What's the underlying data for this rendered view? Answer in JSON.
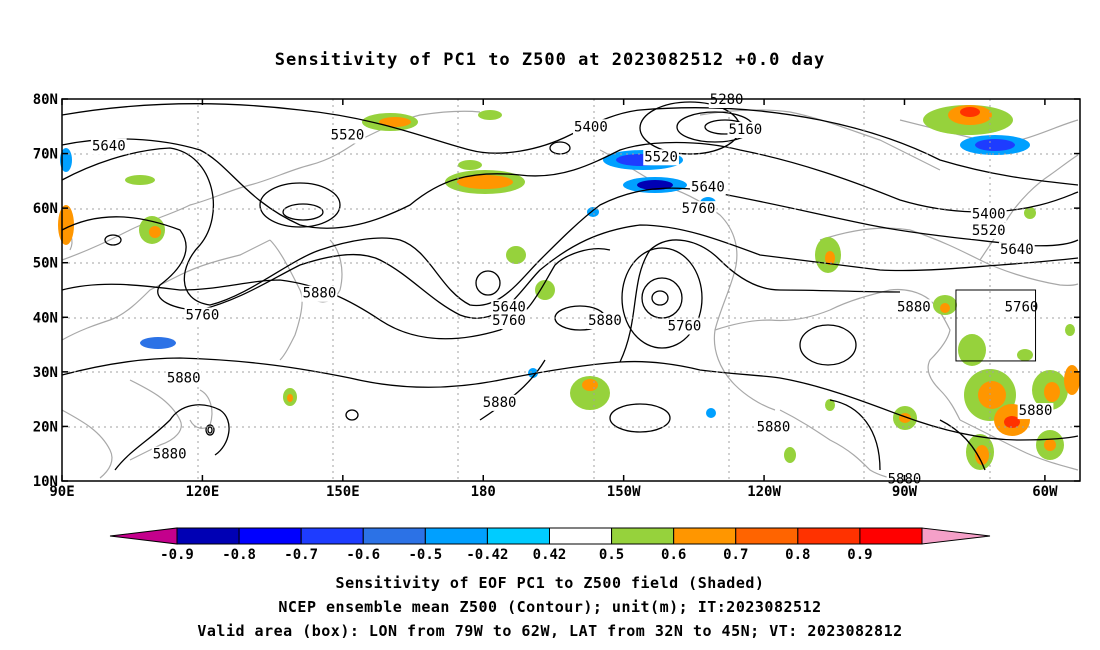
{
  "title": "Sensitivity of PC1 to Z500 at 2023082512 +0.0 day",
  "map": {
    "lat_labels": [
      "80N",
      "70N",
      "60N",
      "50N",
      "40N",
      "30N",
      "20N",
      "10N"
    ],
    "lon_labels": [
      "90E",
      "120E",
      "150E",
      "180",
      "150W",
      "120W",
      "90W",
      "60W"
    ],
    "contour_labels": [
      {
        "text": "5640",
        "lon": 100,
        "lat": 71.5
      },
      {
        "text": "5520",
        "lon": 151,
        "lat": 73.5
      },
      {
        "text": "5400",
        "lon": -157,
        "lat": 75
      },
      {
        "text": "5280",
        "lon": -128,
        "lat": 80
      },
      {
        "text": "5160",
        "lon": -124,
        "lat": 74.5
      },
      {
        "text": "5520",
        "lon": -142,
        "lat": 69.5
      },
      {
        "text": "5640",
        "lon": -132,
        "lat": 64
      },
      {
        "text": "5760",
        "lon": -134,
        "lat": 60
      },
      {
        "text": "5400",
        "lon": -72,
        "lat": 59
      },
      {
        "text": "5520",
        "lon": -72,
        "lat": 56
      },
      {
        "text": "5640",
        "lon": -66,
        "lat": 52.5
      },
      {
        "text": "5880",
        "lon": 145,
        "lat": 44.5
      },
      {
        "text": "5760",
        "lon": 120,
        "lat": 40.5
      },
      {
        "text": "5640",
        "lon": -174.5,
        "lat": 42
      },
      {
        "text": "5760",
        "lon": -174.5,
        "lat": 39.5
      },
      {
        "text": "5880",
        "lon": -154,
        "lat": 39.5
      },
      {
        "text": "5760",
        "lon": -137,
        "lat": 38.5
      },
      {
        "text": "5880",
        "lon": -88,
        "lat": 42
      },
      {
        "text": "5760",
        "lon": -65,
        "lat": 42
      },
      {
        "text": "5880",
        "lon": 116,
        "lat": 29
      },
      {
        "text": "5880",
        "lon": -176.5,
        "lat": 24.5
      },
      {
        "text": "5880",
        "lon": -118,
        "lat": 20
      },
      {
        "text": "5880",
        "lon": 113,
        "lat": 15
      },
      {
        "text": "5880",
        "lon": -62,
        "lat": 23
      },
      {
        "text": "5880",
        "lon": -90,
        "lat": 10.5
      }
    ],
    "valid_box": {
      "lon_west": -79,
      "lon_east": -62,
      "lat_south": 32,
      "lat_north": 45
    }
  },
  "colorbar": {
    "labels": [
      "-0.9",
      "-0.8",
      "-0.7",
      "-0.6",
      "-0.5",
      "-0.42",
      "0.42",
      "0.5",
      "0.6",
      "0.7",
      "0.8",
      "0.9"
    ],
    "colors": {
      "below_min": "#c4008c",
      "bins": [
        "#0000b4",
        "#0000ff",
        "#1e3cff",
        "#2c72e6",
        "#00a0ff",
        "#00ccff",
        "#ffffff",
        "#96d23c",
        "#ff9600",
        "#ff6400",
        "#ff3200",
        "#ff0000"
      ],
      "above_max": "#f5a0c8"
    }
  },
  "captions": {
    "line1": "Sensitivity of EOF PC1 to Z500 field (Shaded)",
    "line2": "NCEP ensemble mean Z500 (Contour); unit(m); IT:2023082512",
    "line3": "Valid area (box): LON from 79W to 62W, LAT from 32N to 45N; VT: 2023082812"
  }
}
